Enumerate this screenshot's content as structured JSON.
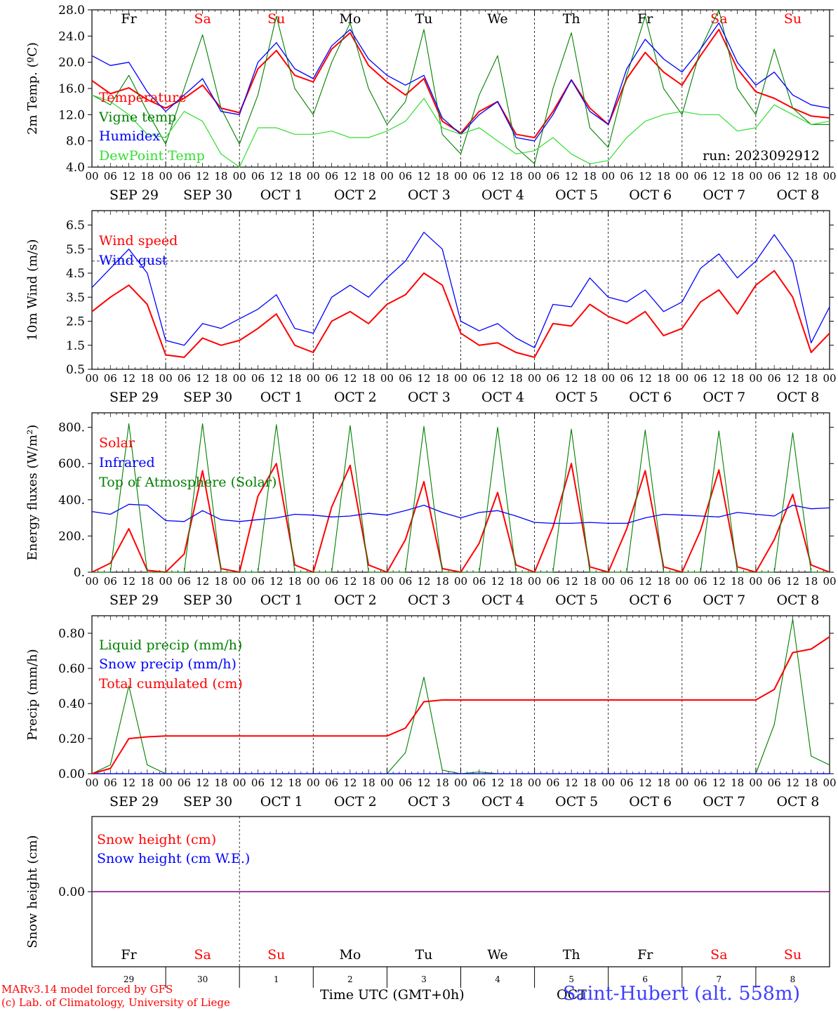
{
  "meteogram": {
    "run_label": "run: 2023092912",
    "day_names": [
      "Fr",
      "Sa",
      "Su",
      "Mo",
      "Tu",
      "We",
      "Th",
      "Fr",
      "Sa",
      "Su"
    ],
    "weekend_flags": [
      false,
      true,
      true,
      false,
      false,
      false,
      false,
      false,
      true,
      true
    ],
    "date_labels": [
      "SEP 29",
      "SEP 30",
      "OCT  1",
      "OCT  2",
      "OCT  3",
      "OCT  4",
      "OCT  5",
      "OCT  6",
      "OCT  7",
      "OCT  8"
    ],
    "day_numbers": [
      "29",
      "30",
      "1",
      "2",
      "3",
      "4",
      "5",
      "6",
      "7",
      "8"
    ],
    "hour_ticks": [
      "00",
      "06",
      "12",
      "18"
    ],
    "final_hour": "00",
    "xlabel": "Time UTC (GMT+0h)",
    "overlap_label": "OCT",
    "station_label": "Saint-Hubert (alt. 558m)",
    "credit_line1": "MARv3.14 model forced by GFS",
    "credit_line2": "(c) Lab. of Climatology, University of Liege",
    "colors": {
      "red": "#ff0000",
      "green": "#008000",
      "blue": "#0000ff",
      "lightgreen": "#33dd33",
      "purple": "#800080",
      "station": "#4040ff"
    }
  },
  "chart_data": [
    {
      "type": "line",
      "ylabel": "2m Temp. (ºC)",
      "ylim": [
        4,
        28
      ],
      "yticks": [
        "4.0",
        "8.0",
        "12.0",
        "16.0",
        "20.0",
        "24.0",
        "28.0"
      ],
      "x_hours_from_sep29_00": [
        0,
        6,
        12,
        18,
        24,
        30,
        36,
        42,
        48,
        54,
        60,
        66,
        72,
        78,
        84,
        90,
        96,
        102,
        108,
        114,
        120,
        126,
        132,
        138,
        144,
        150,
        156,
        162,
        168,
        174,
        180,
        186,
        192,
        198,
        204,
        210,
        216,
        222,
        228,
        234,
        240
      ],
      "series": [
        {
          "name": "Temperature",
          "color": "red",
          "values": [
            17.2,
            15.2,
            16.1,
            14.3,
            13.0,
            14.5,
            16.5,
            13.0,
            12.3,
            19.0,
            21.8,
            18.0,
            17.0,
            22.0,
            24.5,
            19.5,
            17.0,
            15.0,
            17.5,
            11.0,
            9.2,
            12.5,
            14.0,
            9.0,
            8.5,
            12.5,
            17.3,
            13.0,
            10.5,
            17.5,
            21.5,
            18.5,
            16.5,
            21.0,
            25.0,
            19.0,
            15.5,
            14.5,
            13.0,
            11.8,
            11.5
          ]
        },
        {
          "name": "Vigne temp",
          "color": "green",
          "values": [
            15.0,
            13.5,
            18.0,
            12.5,
            7.5,
            16.0,
            24.2,
            13.0,
            7.5,
            15.0,
            27.0,
            16.0,
            12.0,
            20.0,
            26.0,
            16.0,
            10.5,
            14.0,
            25.0,
            9.0,
            6.0,
            15.0,
            21.0,
            7.0,
            4.5,
            16.0,
            24.5,
            10.0,
            7.0,
            18.0,
            27.0,
            16.0,
            12.0,
            22.0,
            28.0,
            16.0,
            12.0,
            22.0,
            13.0,
            10.5,
            10.5
          ]
        },
        {
          "name": "Humidex",
          "color": "blue",
          "values": [
            21.0,
            19.5,
            20.0,
            15.5,
            12.5,
            15.0,
            17.5,
            12.5,
            12.0,
            20.0,
            23.0,
            19.0,
            17.5,
            22.5,
            25.0,
            20.5,
            18.0,
            16.5,
            18.0,
            11.5,
            9.0,
            12.0,
            14.0,
            8.5,
            8.0,
            12.0,
            17.3,
            12.5,
            10.5,
            19.0,
            23.5,
            20.5,
            18.5,
            22.0,
            26.0,
            20.0,
            16.5,
            18.5,
            15.0,
            13.5,
            13.0
          ]
        },
        {
          "name": "DewPoint Temp",
          "color": "lightgreen",
          "values": [
            15.0,
            14.0,
            12.0,
            9.0,
            8.5,
            12.5,
            11.0,
            6.0,
            4.0,
            10.0,
            10.0,
            9.0,
            9.0,
            9.5,
            8.5,
            8.5,
            9.5,
            11.0,
            14.5,
            10.0,
            9.0,
            10.0,
            8.0,
            6.0,
            6.5,
            8.5,
            6.0,
            4.5,
            5.0,
            8.5,
            11.0,
            12.0,
            12.5,
            12.0,
            12.0,
            9.5,
            10.0,
            13.5,
            12.0,
            10.5,
            11.0
          ]
        }
      ],
      "legend_placement": "left"
    },
    {
      "type": "line",
      "ylabel": "10m Wind (m/s)",
      "ylim": [
        0.5,
        7.1
      ],
      "yticks": [
        "0.5",
        "1.5",
        "2.5",
        "3.5",
        "4.5",
        "5.5",
        "6.5"
      ],
      "reference_line": 5.0,
      "x_hours_from_sep29_00": [
        0,
        6,
        12,
        18,
        24,
        30,
        36,
        42,
        48,
        54,
        60,
        66,
        72,
        78,
        84,
        90,
        96,
        102,
        108,
        114,
        120,
        126,
        132,
        138,
        144,
        150,
        156,
        162,
        168,
        174,
        180,
        186,
        192,
        198,
        204,
        210,
        216,
        222,
        228,
        234,
        240
      ],
      "series": [
        {
          "name": "Wind speed",
          "color": "red",
          "values": [
            2.9,
            3.5,
            4.0,
            3.2,
            1.1,
            1.0,
            1.8,
            1.5,
            1.7,
            2.2,
            2.8,
            1.5,
            1.2,
            2.5,
            2.9,
            2.4,
            3.2,
            3.6,
            4.5,
            4.0,
            2.0,
            1.5,
            1.6,
            1.2,
            1.0,
            2.4,
            2.3,
            3.2,
            2.7,
            2.4,
            2.9,
            1.9,
            2.2,
            3.3,
            3.8,
            2.8,
            4.0,
            4.6,
            3.5,
            1.2,
            2.0
          ]
        },
        {
          "name": "Wind gust",
          "color": "blue",
          "values": [
            3.9,
            4.7,
            5.5,
            4.5,
            1.7,
            1.5,
            2.4,
            2.2,
            2.6,
            3.0,
            3.6,
            2.2,
            2.0,
            3.5,
            4.0,
            3.5,
            4.3,
            5.0,
            6.2,
            5.5,
            2.5,
            2.1,
            2.4,
            1.8,
            1.4,
            3.2,
            3.1,
            4.3,
            3.5,
            3.3,
            3.8,
            2.9,
            3.3,
            4.7,
            5.3,
            4.3,
            5.0,
            6.1,
            5.0,
            1.6,
            3.1
          ]
        }
      ],
      "legend_placement": "top-left"
    },
    {
      "type": "line",
      "ylabel": "Energy fluxes (W/m²)",
      "ylim": [
        0,
        880
      ],
      "yticks": [
        "0.",
        "200.",
        "400.",
        "600.",
        "800."
      ],
      "x_hours_from_sep29_00": [
        0,
        6,
        12,
        18,
        24,
        30,
        36,
        42,
        48,
        54,
        60,
        66,
        72,
        78,
        84,
        90,
        96,
        102,
        108,
        114,
        120,
        126,
        132,
        138,
        144,
        150,
        156,
        162,
        168,
        174,
        180,
        186,
        192,
        198,
        204,
        210,
        216,
        222,
        228,
        234,
        240
      ],
      "series": [
        {
          "name": "Solar",
          "color": "red",
          "values": [
            0,
            50,
            240,
            10,
            0,
            100,
            560,
            20,
            0,
            420,
            600,
            40,
            0,
            360,
            590,
            40,
            0,
            180,
            500,
            20,
            0,
            160,
            440,
            40,
            0,
            250,
            600,
            30,
            0,
            240,
            560,
            30,
            0,
            230,
            565,
            30,
            0,
            180,
            430,
            40,
            0
          ]
        },
        {
          "name": "Infrared",
          "color": "blue",
          "values": [
            335,
            320,
            375,
            370,
            285,
            280,
            340,
            290,
            280,
            290,
            300,
            320,
            315,
            305,
            310,
            325,
            315,
            340,
            370,
            330,
            300,
            330,
            340,
            310,
            275,
            270,
            270,
            275,
            270,
            270,
            300,
            320,
            315,
            310,
            305,
            330,
            320,
            310,
            370,
            350,
            355
          ]
        },
        {
          "name": "Top of Atmosphere (Solar)",
          "color": "green",
          "values": [
            0,
            0,
            820,
            0,
            0,
            0,
            820,
            0,
            0,
            0,
            815,
            0,
            0,
            0,
            810,
            0,
            0,
            0,
            805,
            0,
            0,
            0,
            800,
            0,
            0,
            0,
            790,
            0,
            0,
            0,
            785,
            0,
            0,
            0,
            780,
            0,
            0,
            0,
            770,
            0,
            0
          ]
        }
      ],
      "legend_placement": "top-left"
    },
    {
      "type": "line",
      "ylabel": "Precip (mm/h)",
      "ylim": [
        0,
        0.9
      ],
      "yticks": [
        "0.00",
        "0.20",
        "0.40",
        "0.60",
        "0.80"
      ],
      "x_hours_from_sep29_00": [
        0,
        6,
        12,
        18,
        24,
        30,
        36,
        42,
        48,
        54,
        60,
        66,
        72,
        78,
        84,
        90,
        96,
        102,
        108,
        114,
        120,
        126,
        132,
        138,
        144,
        150,
        156,
        162,
        168,
        174,
        180,
        186,
        192,
        198,
        204,
        210,
        216,
        222,
        228,
        234,
        240
      ],
      "series": [
        {
          "name": "Liquid precip (mm/h)",
          "color": "green",
          "values": [
            0,
            0.05,
            0.5,
            0.05,
            0,
            0,
            0,
            0,
            0,
            0,
            0,
            0,
            0,
            0,
            0,
            0,
            0,
            0.12,
            0.55,
            0.02,
            0,
            0.01,
            0,
            0,
            0,
            0,
            0,
            0,
            0,
            0,
            0,
            0,
            0,
            0,
            0,
            0,
            0,
            0.28,
            0.88,
            0.1,
            0.05
          ]
        },
        {
          "name": "Snow precip (mm/h)",
          "color": "blue",
          "values": [
            0,
            0,
            0,
            0,
            0,
            0,
            0,
            0,
            0,
            0,
            0,
            0,
            0,
            0,
            0,
            0,
            0,
            0,
            0,
            0,
            0,
            0,
            0,
            0,
            0,
            0,
            0,
            0,
            0,
            0,
            0,
            0,
            0,
            0,
            0,
            0,
            0,
            0,
            0,
            0,
            0
          ]
        },
        {
          "name": "Total cumulated (cm)",
          "color": "red",
          "values": [
            0,
            0.03,
            0.2,
            0.21,
            0.215,
            0.215,
            0.215,
            0.215,
            0.215,
            0.215,
            0.215,
            0.215,
            0.215,
            0.215,
            0.215,
            0.215,
            0.215,
            0.26,
            0.41,
            0.42,
            0.42,
            0.42,
            0.42,
            0.42,
            0.42,
            0.42,
            0.42,
            0.42,
            0.42,
            0.42,
            0.42,
            0.42,
            0.42,
            0.42,
            0.42,
            0.42,
            0.42,
            0.48,
            0.69,
            0.71,
            0.78
          ]
        }
      ],
      "legend_placement": "top-left"
    },
    {
      "type": "line",
      "ylabel": "Snow height (cm)",
      "yticks": [
        "0.00"
      ],
      "series": [
        {
          "name": "Snow height (cm)",
          "color": "red",
          "values": [
            0,
            0
          ]
        },
        {
          "name": "Snow height (cm W.E.)",
          "color": "blue",
          "values": [
            0,
            0
          ]
        }
      ],
      "legend_placement": "top-left"
    }
  ]
}
